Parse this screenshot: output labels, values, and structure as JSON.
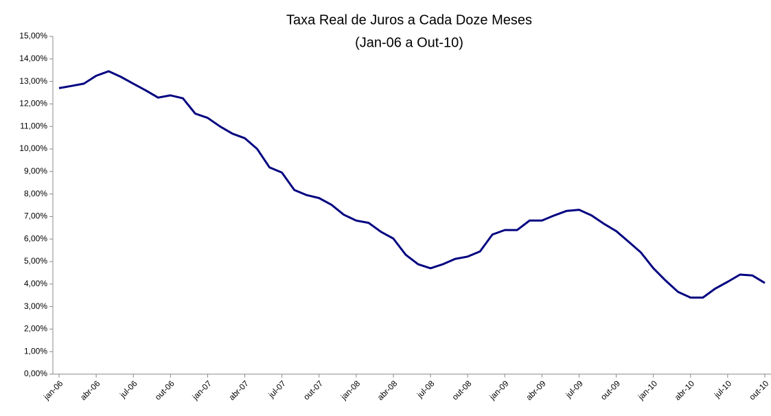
{
  "chart_data": {
    "type": "line",
    "title": "Taxa Real de Juros a Cada Doze Meses",
    "subtitle": "(Jan-06 a Out-10)",
    "categories": [
      "jan-06",
      null,
      null,
      "abr-06",
      null,
      null,
      "jul-06",
      null,
      null,
      "out-06",
      null,
      null,
      "jan-07",
      null,
      null,
      "abr-07",
      null,
      null,
      "jul-07",
      null,
      null,
      "out-07",
      null,
      null,
      "jan-08",
      null,
      null,
      "abr-08",
      null,
      null,
      "jul-08",
      null,
      null,
      "out-08",
      null,
      null,
      "jan-09",
      null,
      null,
      "abr-09",
      null,
      null,
      "jul-09",
      null,
      null,
      "out-09",
      null,
      null,
      "jan-10",
      null,
      null,
      "abr-10",
      null,
      null,
      "jul-10",
      null,
      null,
      "out-10"
    ],
    "series": [
      {
        "color": "#000080",
        "values": [
          12.7,
          12.8,
          12.9,
          13.25,
          13.45,
          13.2,
          12.9,
          12.6,
          12.28,
          12.38,
          12.25,
          11.57,
          11.38,
          11.0,
          10.68,
          10.48,
          10.0,
          9.18,
          8.95,
          8.18,
          7.95,
          7.82,
          7.52,
          7.08,
          6.82,
          6.72,
          6.32,
          6.02,
          5.3,
          4.88,
          4.7,
          4.88,
          5.12,
          5.22,
          5.45,
          6.2,
          6.4,
          6.4,
          6.82,
          6.82,
          7.05,
          7.25,
          7.3,
          7.05,
          6.68,
          6.35,
          5.88,
          5.4,
          4.7,
          4.15,
          3.65,
          3.4,
          3.4,
          3.8,
          4.1,
          4.42,
          4.38,
          4.05
        ]
      }
    ],
    "ylim": [
      0,
      15
    ],
    "yticks": [
      {
        "value": 0,
        "label": "0,00%"
      },
      {
        "value": 1,
        "label": "1,00%"
      },
      {
        "value": 2,
        "label": "2,00%"
      },
      {
        "value": 3,
        "label": "3,00%"
      },
      {
        "value": 4,
        "label": "4,00%"
      },
      {
        "value": 5,
        "label": "5,00%"
      },
      {
        "value": 6,
        "label": "6,00%"
      },
      {
        "value": 7,
        "label": "7,00%"
      },
      {
        "value": 8,
        "label": "8,00%"
      },
      {
        "value": 9,
        "label": "9,00%"
      },
      {
        "value": 10,
        "label": "10,00%"
      },
      {
        "value": 11,
        "label": "11,00%"
      },
      {
        "value": 12,
        "label": "12,00%"
      },
      {
        "value": 13,
        "label": "13,00%"
      },
      {
        "value": 14,
        "label": "14,00%"
      },
      {
        "value": 15,
        "label": "15,00%"
      }
    ],
    "grid": false
  }
}
